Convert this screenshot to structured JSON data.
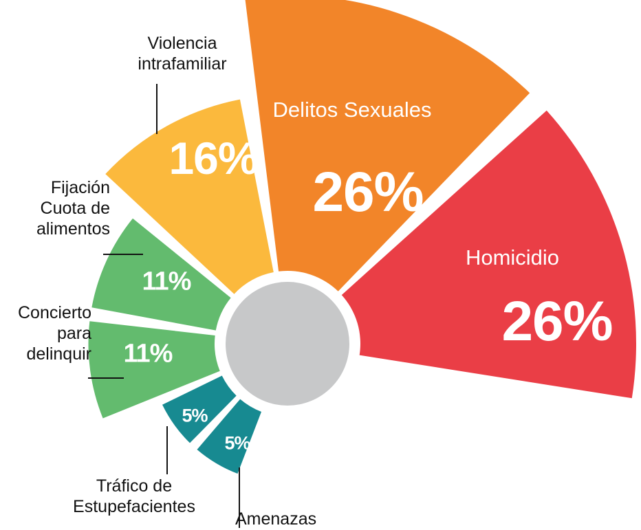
{
  "chart_data": {
    "type": "polar-area",
    "categories": [
      "Homicidio",
      "Delitos Sexuales",
      "Violencia intrafamiliar",
      "Fijación Cuota de alimentos",
      "Concierto para delinquir",
      "Tráfico de Estupefacientes",
      "Amenazas"
    ],
    "values": [
      26,
      26,
      16,
      11,
      11,
      5,
      5
    ],
    "value_labels": [
      "26%",
      "26%",
      "16%",
      "11%",
      "11%",
      "5%",
      "5%"
    ],
    "colors": [
      "#ea3e46",
      "#f28529",
      "#fbb93d",
      "#63bb6e",
      "#63bb6e",
      "#178a91",
      "#178a91"
    ],
    "center_color": "#c7c8c9"
  }
}
